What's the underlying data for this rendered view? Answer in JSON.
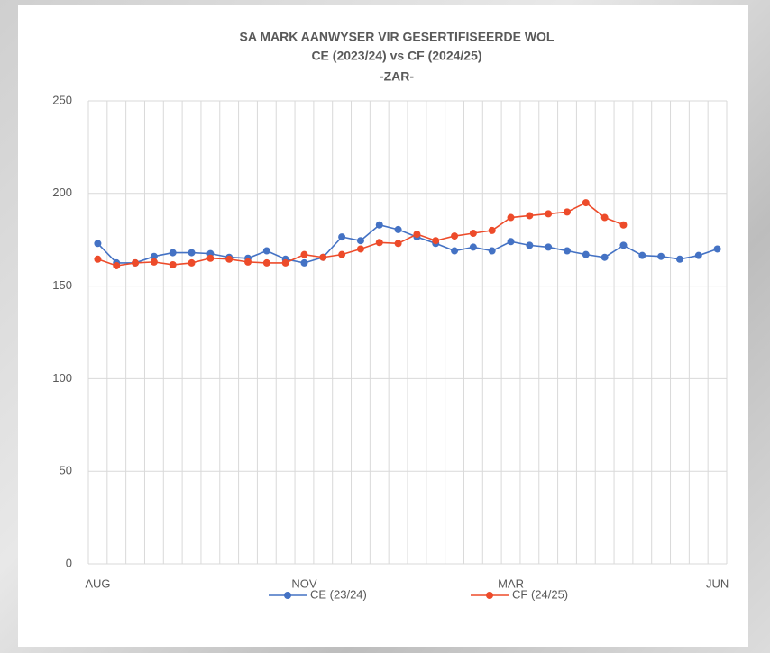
{
  "chart_data": {
    "type": "line",
    "title": [
      "SA MARK AANWYSER VIR GESERTIFISEERDE WOL",
      "CE (2023/24) vs CF (2024/25)",
      "-ZAR-"
    ],
    "categories": [
      "AUG",
      null,
      null,
      null,
      null,
      null,
      null,
      null,
      null,
      null,
      null,
      "NOV",
      null,
      null,
      null,
      null,
      null,
      null,
      null,
      null,
      null,
      null,
      "MAR",
      null,
      null,
      null,
      null,
      null,
      null,
      null,
      null,
      null,
      null,
      "JUN"
    ],
    "series": [
      {
        "name": "CE (23/24)",
        "color": "#4472c4",
        "values": [
          173,
          162.5,
          162.5,
          166,
          168,
          168,
          167.5,
          165.5,
          165,
          169,
          164.5,
          162.5,
          165.5,
          176.5,
          174.5,
          183,
          180.5,
          176.5,
          173,
          169,
          171,
          169,
          174,
          172,
          171,
          169,
          167,
          165.5,
          172,
          166.5,
          166,
          164.5,
          166.5,
          170
        ]
      },
      {
        "name": "CF (24/25)",
        "color": "#ed4b2a",
        "values": [
          164.5,
          161,
          162.5,
          163,
          161.5,
          162.5,
          165,
          164.5,
          163,
          162.5,
          162.5,
          167,
          165.5,
          167,
          170,
          173.5,
          173,
          178,
          174.5,
          177,
          178.5,
          180,
          187,
          188,
          189,
          190,
          195,
          187,
          183,
          null,
          null,
          null,
          null,
          null
        ]
      }
    ],
    "ylim": [
      0,
      250
    ],
    "yticks": [
      0,
      50,
      100,
      150,
      200,
      250
    ],
    "grid": true
  }
}
